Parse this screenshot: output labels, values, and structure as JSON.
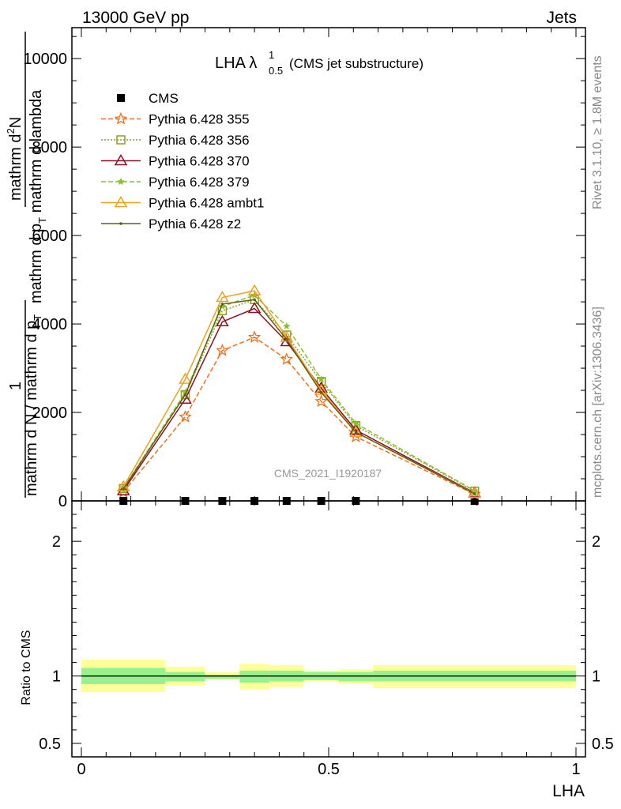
{
  "header": {
    "left": "13000 GeV pp",
    "right": "Jets"
  },
  "side_labels": {
    "rivet": "Rivet 3.1.10, ≥ 1.8M events",
    "mcplots": "mcplots.cern.ch [arXiv:1306.3436]"
  },
  "watermark": "CMS_2021_I1920187",
  "chart_data": [
    {
      "type": "line",
      "title_main": "LHA λ",
      "title_sup": "1",
      "title_sub": "0.5",
      "title_note": "(CMS jet substructure)",
      "ylabel_num_a": "mathrm d",
      "ylabel_num_b": "2",
      "ylabel_num_c": "N",
      "ylabel_den": "mathrm d p",
      "ylabel_den_sub": "T",
      "ylabel_den_tail": " mathrm d lambda",
      "ylabel_one": "1",
      "ylabel_norm": "mathrm d N / mathrm d p",
      "ylabel_norm_sub": "T",
      "ylim": [
        0,
        10700
      ],
      "yticks": [
        0,
        2000,
        4000,
        6000,
        8000,
        10000
      ],
      "ytick_labels": [
        "0",
        "2000",
        "4000",
        "6000",
        "8000",
        "10000"
      ],
      "x": [
        0.085,
        0.21,
        0.285,
        0.35,
        0.415,
        0.485,
        0.555,
        0.795
      ],
      "series": [
        {
          "name": "CMS",
          "color": "#000000",
          "style": "solid",
          "marker": "square",
          "values": [
            0,
            0,
            0,
            0,
            0,
            0,
            0,
            0
          ]
        },
        {
          "name": "Pythia 6.428 355",
          "color": "#f07020",
          "style": "dashed",
          "marker": "star",
          "values": [
            200,
            1900,
            3400,
            3700,
            3200,
            2250,
            1450,
            150
          ]
        },
        {
          "name": "Pythia 6.428 356",
          "color": "#8aa11f",
          "style": "dotted",
          "marker": "square-open",
          "values": [
            280,
            2400,
            4300,
            4550,
            3750,
            2700,
            1700,
            220
          ]
        },
        {
          "name": "Pythia 6.428 370",
          "color": "#8b1020",
          "style": "solid",
          "marker": "triangle-open",
          "values": [
            230,
            2300,
            4050,
            4350,
            3600,
            2550,
            1600,
            180
          ]
        },
        {
          "name": "Pythia 6.428 379",
          "color": "#88c030",
          "style": "dashed",
          "marker": "star-filled",
          "values": [
            290,
            2450,
            4400,
            4650,
            3950,
            2750,
            1750,
            230
          ]
        },
        {
          "name": "Pythia 6.428 ambt1",
          "color": "#f0a020",
          "style": "solid",
          "marker": "triangle-open",
          "values": [
            320,
            2750,
            4600,
            4750,
            3700,
            2500,
            1550,
            170
          ]
        },
        {
          "name": "Pythia 6.428 z2",
          "color": "#606010",
          "style": "solid",
          "marker": "dot",
          "values": [
            270,
            2400,
            4450,
            4550,
            3650,
            2450,
            1550,
            160
          ]
        }
      ]
    },
    {
      "type": "area",
      "ylabel": "Ratio to CMS",
      "xlabel": "LHA",
      "xlim": [
        0,
        1
      ],
      "ylim": [
        0.4,
        2.3
      ],
      "xticks": [
        0,
        0.5,
        1
      ],
      "xtick_labels": [
        "0",
        "0.5",
        "1"
      ],
      "yticks": [
        0.5,
        1,
        2
      ],
      "ytick_labels": [
        "0.5",
        "1",
        "2"
      ],
      "bins": [
        {
          "lo": 0.0,
          "hi": 0.17,
          "inner": [
            0.94,
            1.06
          ],
          "outer": [
            0.88,
            1.12
          ]
        },
        {
          "lo": 0.17,
          "hi": 0.25,
          "inner": [
            0.96,
            1.03
          ],
          "outer": [
            0.93,
            1.07
          ]
        },
        {
          "lo": 0.25,
          "hi": 0.32,
          "inner": [
            0.98,
            1.01
          ],
          "outer": [
            0.97,
            1.03
          ]
        },
        {
          "lo": 0.32,
          "hi": 0.38,
          "inner": [
            0.95,
            1.04
          ],
          "outer": [
            0.9,
            1.09
          ]
        },
        {
          "lo": 0.38,
          "hi": 0.45,
          "inner": [
            0.96,
            1.04
          ],
          "outer": [
            0.92,
            1.08
          ]
        },
        {
          "lo": 0.45,
          "hi": 0.52,
          "inner": [
            0.97,
            1.03
          ],
          "outer": [
            0.96,
            1.04
          ]
        },
        {
          "lo": 0.52,
          "hi": 0.59,
          "inner": [
            0.96,
            1.03
          ],
          "outer": [
            0.94,
            1.05
          ]
        },
        {
          "lo": 0.59,
          "hi": 1.0,
          "inner": [
            0.96,
            1.04
          ],
          "outer": [
            0.91,
            1.08
          ]
        }
      ],
      "inner_color": "#98f090",
      "outer_color": "#ffff98"
    }
  ]
}
